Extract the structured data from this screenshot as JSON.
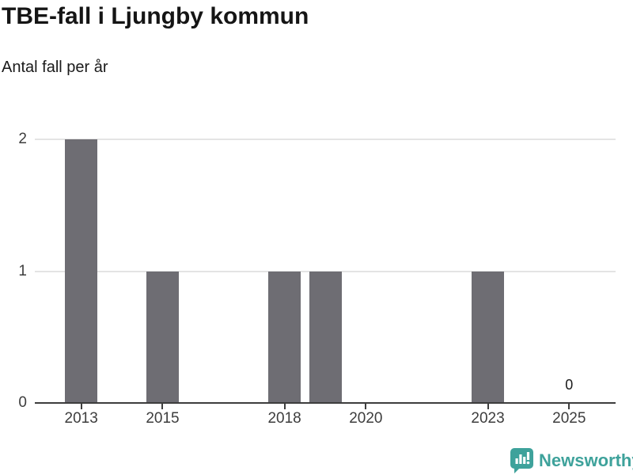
{
  "chart_data": {
    "type": "bar",
    "title": "TBE-fall i Ljungby kommun",
    "subtitle": "Antal fall per år",
    "categories": [
      "2013",
      "2014",
      "2015",
      "2016",
      "2017",
      "2018",
      "2019",
      "2020",
      "2021",
      "2022",
      "2023",
      "2024",
      "2025"
    ],
    "values": [
      2,
      0,
      1,
      0,
      0,
      1,
      1,
      0,
      0,
      0,
      1,
      0,
      0
    ],
    "x_tick_labels": [
      "2013",
      "2015",
      "2018",
      "2020",
      "2023",
      "2025"
    ],
    "y_ticks": [
      0,
      1,
      2
    ],
    "ylim": [
      0,
      2
    ],
    "grid": "horizontal-on",
    "legend": "none",
    "value_labels": [
      {
        "category": "2025",
        "label": "0"
      }
    ],
    "bar_color": "#6e6d73",
    "axis_color": "#3d3d3d",
    "gridline_color": "#e4e4e4"
  },
  "footer": {
    "brand": "Newsworthy",
    "brand_color": "#3ea29b",
    "logo_icon": "newsworthy-chart-bubble-icon"
  }
}
